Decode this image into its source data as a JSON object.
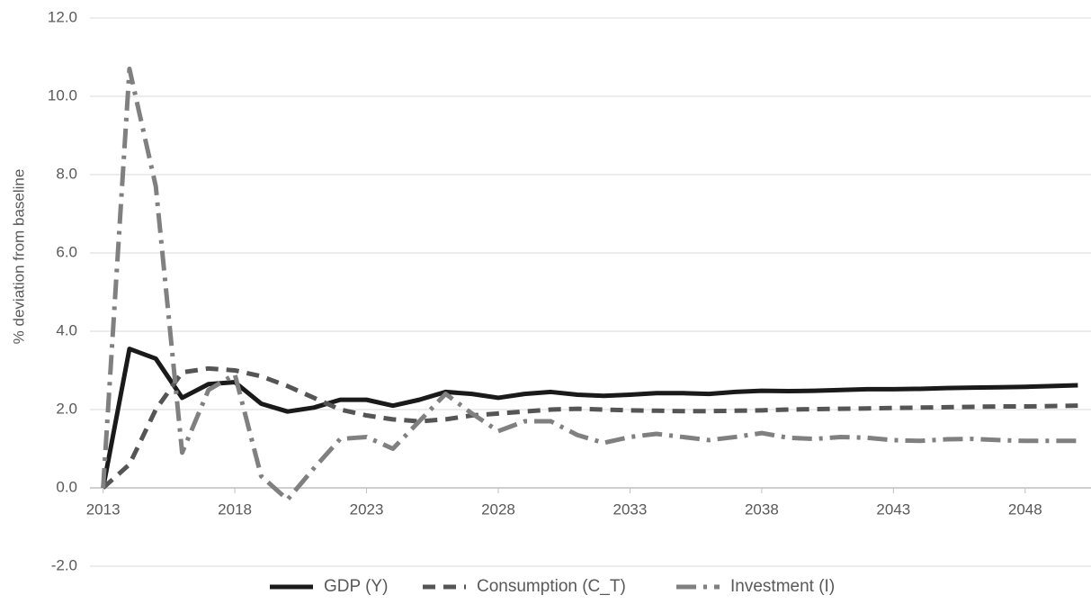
{
  "chart_data": {
    "type": "line",
    "y_label": "% deviation from baseline",
    "x": [
      2013,
      2014,
      2015,
      2016,
      2017,
      2018,
      2019,
      2020,
      2021,
      2022,
      2023,
      2024,
      2025,
      2026,
      2027,
      2028,
      2029,
      2030,
      2031,
      2032,
      2033,
      2034,
      2035,
      2036,
      2037,
      2038,
      2039,
      2040,
      2041,
      2042,
      2043,
      2044,
      2045,
      2046,
      2047,
      2048,
      2049,
      2050
    ],
    "xlim": [
      2012.5,
      2050.5
    ],
    "xticks": [
      2013,
      2018,
      2023,
      2028,
      2033,
      2038,
      2043,
      2048
    ],
    "ylim": [
      -2,
      12
    ],
    "yticks": [
      {
        "value": -2,
        "label": "-2.0"
      },
      {
        "value": 0,
        "label": "0.0"
      },
      {
        "value": 2,
        "label": "2.0"
      },
      {
        "value": 4,
        "label": "4.0"
      },
      {
        "value": 6,
        "label": "6.0"
      },
      {
        "value": 8,
        "label": "8.0"
      },
      {
        "value": 10,
        "label": "10.0"
      },
      {
        "value": 12,
        "label": "12.0"
      }
    ],
    "grid": true,
    "legend": "bottom",
    "series": [
      {
        "name": "GDP (Y)",
        "color": "#1a1a1a",
        "dash": "solid",
        "values": [
          0,
          3.55,
          3.3,
          2.3,
          2.65,
          2.7,
          2.15,
          1.95,
          2.05,
          2.25,
          2.25,
          2.1,
          2.25,
          2.45,
          2.4,
          2.3,
          2.4,
          2.45,
          2.38,
          2.35,
          2.38,
          2.42,
          2.42,
          2.4,
          2.45,
          2.48,
          2.47,
          2.48,
          2.5,
          2.52,
          2.52,
          2.53,
          2.55,
          2.56,
          2.57,
          2.58,
          2.6,
          2.62
        ]
      },
      {
        "name": "Consumption (C_T)",
        "color": "#555555",
        "dash": "dashed",
        "values": [
          0,
          0.6,
          2.0,
          2.95,
          3.05,
          3.0,
          2.85,
          2.6,
          2.3,
          2.0,
          1.85,
          1.75,
          1.7,
          1.75,
          1.85,
          1.9,
          1.95,
          2.0,
          2.02,
          2.0,
          1.98,
          1.97,
          1.96,
          1.96,
          1.97,
          1.98,
          2.0,
          2.01,
          2.02,
          2.03,
          2.04,
          2.05,
          2.06,
          2.07,
          2.08,
          2.08,
          2.09,
          2.1
        ]
      },
      {
        "name": "Investment (I)",
        "color": "#808080",
        "dash": "dashdot",
        "values": [
          0,
          10.7,
          7.7,
          0.9,
          2.5,
          2.9,
          0.3,
          -0.3,
          0.5,
          1.25,
          1.3,
          1.0,
          1.7,
          2.4,
          1.9,
          1.45,
          1.7,
          1.7,
          1.35,
          1.15,
          1.3,
          1.38,
          1.3,
          1.22,
          1.3,
          1.4,
          1.28,
          1.25,
          1.3,
          1.28,
          1.22,
          1.2,
          1.24,
          1.25,
          1.22,
          1.2,
          1.2,
          1.2
        ]
      }
    ]
  }
}
